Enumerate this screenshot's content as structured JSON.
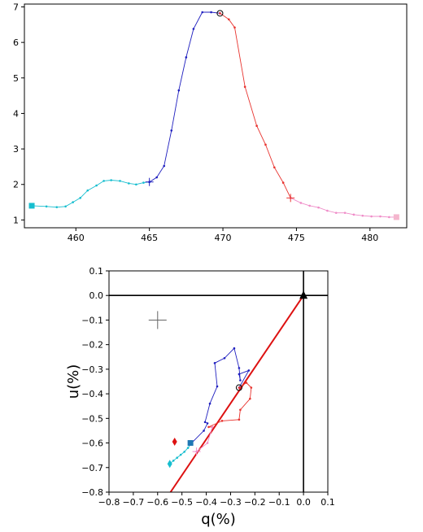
{
  "chart_data": [
    {
      "type": "line",
      "xlim": [
        456.5,
        482.5
      ],
      "ylim": [
        0.78,
        7.08
      ],
      "xticks": [
        460,
        465,
        470,
        475,
        480
      ],
      "yticks": [
        1,
        2,
        3,
        4,
        5,
        6,
        7
      ],
      "xtick_labels": [
        "460",
        "465",
        "470",
        "475",
        "480"
      ],
      "ytick_labels": [
        "1",
        "2",
        "3",
        "4",
        "5",
        "6",
        "7"
      ],
      "grid": false,
      "series": [
        {
          "color": "#17becf",
          "x": [
            457.0,
            458.0,
            458.7,
            459.3,
            459.8,
            460.3,
            460.8,
            461.4,
            461.9,
            462.4,
            463.0,
            463.6,
            464.1,
            464.6,
            465.0
          ],
          "y": [
            1.4,
            1.38,
            1.36,
            1.38,
            1.5,
            1.62,
            1.83,
            1.97,
            2.1,
            2.12,
            2.1,
            2.03,
            2.0,
            2.05,
            2.07
          ]
        },
        {
          "color": "#1f1fbf",
          "x": [
            465.0,
            465.5,
            466.0,
            466.5,
            467.0,
            467.5,
            468.0,
            468.6,
            469.2,
            469.8
          ],
          "y": [
            2.07,
            2.2,
            2.52,
            3.52,
            4.65,
            5.58,
            6.38,
            6.85,
            6.85,
            6.82
          ]
        },
        {
          "color": "#e8332e",
          "x": [
            469.8,
            470.4,
            470.8,
            471.5,
            472.3,
            472.9,
            473.5,
            474.1,
            474.6
          ],
          "y": [
            6.82,
            6.65,
            6.42,
            4.75,
            3.65,
            3.12,
            2.48,
            2.05,
            1.62
          ]
        },
        {
          "color": "#ef8cc8",
          "x": [
            474.6,
            475.3,
            475.9,
            476.5,
            477.1,
            477.7,
            478.3,
            478.9,
            479.5,
            480.1,
            480.7,
            481.3,
            481.8
          ],
          "y": [
            1.62,
            1.48,
            1.4,
            1.35,
            1.26,
            1.2,
            1.2,
            1.15,
            1.12,
            1.1,
            1.1,
            1.08,
            1.08
          ]
        }
      ],
      "markers": [
        {
          "shape": "square",
          "x": 457.0,
          "y": 1.4,
          "color": "#17becf"
        },
        {
          "shape": "plus",
          "x": 465.0,
          "y": 2.07,
          "color": "#1f1fbf"
        },
        {
          "shape": "circle-open",
          "x": 469.8,
          "y": 6.82,
          "color": "#000000"
        },
        {
          "shape": "plus",
          "x": 474.6,
          "y": 1.62,
          "color": "#e8332e"
        },
        {
          "shape": "square",
          "x": 481.8,
          "y": 1.08,
          "color": "#f4b6cd"
        }
      ]
    },
    {
      "type": "line",
      "xlabel": "q(%)",
      "ylabel": "u(%)",
      "xlim": [
        -0.8,
        0.1
      ],
      "ylim": [
        -0.8,
        0.1
      ],
      "xticks": [
        -0.8,
        -0.7,
        -0.6,
        -0.5,
        -0.4,
        -0.3,
        -0.2,
        -0.1,
        0.0,
        0.1
      ],
      "yticks": [
        0.1,
        0.0,
        -0.1,
        -0.2,
        -0.3,
        -0.4,
        -0.5,
        -0.6,
        -0.7,
        -0.8
      ],
      "xtick_labels": [
        "−0.8",
        "−0.7",
        "−0.6",
        "−0.5",
        "−0.4",
        "−0.3",
        "−0.2",
        "−0.1",
        "0.0",
        "0.1"
      ],
      "ytick_labels": [
        "0.1",
        "0.0",
        "−0.1",
        "−0.2",
        "−0.3",
        "−0.4",
        "−0.5",
        "−0.6",
        "−0.7",
        "−0.8"
      ],
      "grid": false,
      "zero_lines": true,
      "reference_line": {
        "color": "#dd1111",
        "x": [
          -0.547,
          0.0
        ],
        "y": [
          -0.8,
          0.0
        ]
      },
      "series": [
        {
          "color": "#17becf",
          "x": [
            -0.55,
            -0.535,
            -0.52,
            -0.505,
            -0.49,
            -0.475,
            -0.46
          ],
          "y": [
            -0.685,
            -0.672,
            -0.66,
            -0.648,
            -0.636,
            -0.62,
            -0.6
          ]
        },
        {
          "color": "#1f1fbf",
          "x": [
            -0.46,
            -0.41,
            -0.395,
            -0.405,
            -0.385,
            -0.355,
            -0.365,
            -0.325,
            -0.285,
            -0.265,
            -0.26,
            -0.265,
            -0.225,
            -0.265
          ],
          "y": [
            -0.6,
            -0.55,
            -0.52,
            -0.515,
            -0.44,
            -0.37,
            -0.275,
            -0.255,
            -0.215,
            -0.295,
            -0.345,
            -0.32,
            -0.305,
            -0.375
          ]
        },
        {
          "color": "#e8332e",
          "x": [
            -0.265,
            -0.235,
            -0.215,
            -0.22,
            -0.26,
            -0.265,
            -0.335,
            -0.39,
            -0.375
          ],
          "y": [
            -0.375,
            -0.355,
            -0.375,
            -0.42,
            -0.465,
            -0.505,
            -0.51,
            -0.535,
            -0.535
          ]
        },
        {
          "color": "#ef8cc8",
          "x": [
            -0.375,
            -0.395,
            -0.44
          ],
          "y": [
            -0.535,
            -0.6,
            -0.635
          ]
        }
      ],
      "markers": [
        {
          "shape": "cross-large",
          "x": -0.6,
          "y": -0.1,
          "color": "#666666"
        },
        {
          "shape": "diamond",
          "x": -0.53,
          "y": -0.595,
          "color": "#dd1111"
        },
        {
          "shape": "diamond",
          "x": -0.55,
          "y": -0.685,
          "color": "#17becf"
        },
        {
          "shape": "square",
          "x": -0.465,
          "y": -0.6,
          "color": "#1f77b4"
        },
        {
          "shape": "plus",
          "x": -0.44,
          "y": -0.635,
          "color": "#ef8cc8"
        },
        {
          "shape": "circle-open",
          "x": -0.265,
          "y": -0.375,
          "color": "#000000"
        },
        {
          "shape": "triangle",
          "x": 0.0,
          "y": 0.0,
          "color": "#000000"
        }
      ]
    }
  ]
}
